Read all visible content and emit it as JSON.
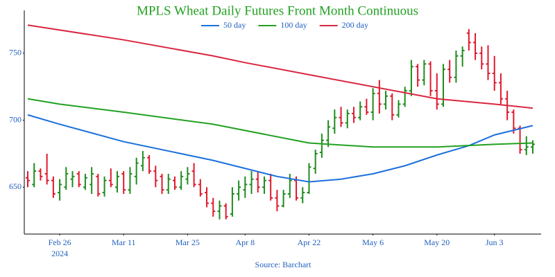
{
  "chart_data": {
    "type": "ohlc",
    "title": "MPLS Wheat Daily Futures Front Month Continuous",
    "source": "Source: Barchart",
    "x_year": "2024",
    "x": [
      "2024-02-16",
      "2024-02-20",
      "2024-02-21",
      "2024-02-22",
      "2024-02-23",
      "2024-02-26",
      "2024-02-27",
      "2024-02-28",
      "2024-02-29",
      "2024-03-01",
      "2024-03-04",
      "2024-03-05",
      "2024-03-06",
      "2024-03-07",
      "2024-03-08",
      "2024-03-11",
      "2024-03-12",
      "2024-03-13",
      "2024-03-14",
      "2024-03-15",
      "2024-03-18",
      "2024-03-19",
      "2024-03-20",
      "2024-03-21",
      "2024-03-22",
      "2024-03-25",
      "2024-03-26",
      "2024-03-27",
      "2024-03-28",
      "2024-04-01",
      "2024-04-02",
      "2024-04-03",
      "2024-04-04",
      "2024-04-05",
      "2024-04-08",
      "2024-04-09",
      "2024-04-10",
      "2024-04-11",
      "2024-04-12",
      "2024-04-15",
      "2024-04-16",
      "2024-04-17",
      "2024-04-18",
      "2024-04-19",
      "2024-04-22",
      "2024-04-23",
      "2024-04-24",
      "2024-04-25",
      "2024-04-26",
      "2024-04-29",
      "2024-04-30",
      "2024-05-01",
      "2024-05-02",
      "2024-05-03",
      "2024-05-06",
      "2024-05-07",
      "2024-05-08",
      "2024-05-09",
      "2024-05-10",
      "2024-05-13",
      "2024-05-14",
      "2024-05-15",
      "2024-05-16",
      "2024-05-17",
      "2024-05-20",
      "2024-05-21",
      "2024-05-22",
      "2024-05-23",
      "2024-05-24",
      "2024-05-28",
      "2024-05-29",
      "2024-05-30",
      "2024-05-31",
      "2024-06-03",
      "2024-06-04",
      "2024-06-05",
      "2024-06-06",
      "2024-06-07",
      "2024-06-10",
      "2024-06-11"
    ],
    "open": [
      657,
      652,
      662,
      660,
      655,
      646,
      650,
      656,
      660,
      650,
      652,
      658,
      646,
      655,
      650,
      660,
      648,
      658,
      666,
      672,
      662,
      658,
      648,
      655,
      650,
      656,
      662,
      652,
      646,
      638,
      632,
      636,
      630,
      645,
      648,
      652,
      656,
      650,
      655,
      642,
      636,
      645,
      655,
      642,
      646,
      664,
      676,
      685,
      694,
      702,
      698,
      705,
      702,
      710,
      706,
      720,
      712,
      718,
      704,
      712,
      722,
      740,
      730,
      742,
      722,
      712,
      738,
      732,
      748,
      765,
      758,
      750,
      742,
      735,
      728,
      716,
      706,
      694,
      678,
      680
    ],
    "high": [
      662,
      668,
      664,
      675,
      658,
      656,
      665,
      662,
      662,
      660,
      665,
      660,
      658,
      664,
      662,
      662,
      665,
      672,
      677,
      674,
      666,
      660,
      660,
      658,
      662,
      665,
      668,
      656,
      650,
      642,
      640,
      638,
      650,
      655,
      658,
      662,
      662,
      658,
      660,
      648,
      648,
      660,
      658,
      650,
      668,
      678,
      690,
      700,
      708,
      710,
      708,
      710,
      714,
      716,
      724,
      730,
      722,
      720,
      715,
      725,
      745,
      742,
      745,
      744,
      735,
      742,
      745,
      752,
      755,
      768,
      765,
      755,
      756,
      748,
      735,
      722,
      708,
      696,
      688,
      685
    ],
    "low": [
      650,
      650,
      655,
      652,
      642,
      640,
      648,
      650,
      650,
      648,
      645,
      643,
      643,
      650,
      646,
      645,
      645,
      652,
      662,
      660,
      650,
      645,
      645,
      648,
      648,
      652,
      650,
      643,
      635,
      628,
      626,
      626,
      628,
      640,
      642,
      645,
      646,
      645,
      640,
      632,
      635,
      642,
      640,
      638,
      645,
      660,
      672,
      680,
      690,
      695,
      694,
      698,
      700,
      704,
      700,
      705,
      708,
      700,
      702,
      710,
      718,
      725,
      726,
      718,
      708,
      710,
      728,
      728,
      740,
      752,
      745,
      738,
      730,
      722,
      712,
      700,
      690,
      675,
      674,
      675
    ],
    "close": [
      655,
      662,
      658,
      655,
      645,
      652,
      660,
      658,
      652,
      657,
      660,
      645,
      655,
      652,
      658,
      648,
      660,
      668,
      672,
      662,
      655,
      648,
      656,
      650,
      658,
      660,
      652,
      645,
      638,
      632,
      636,
      628,
      645,
      650,
      652,
      656,
      650,
      655,
      642,
      636,
      645,
      655,
      642,
      646,
      665,
      675,
      685,
      695,
      702,
      698,
      705,
      702,
      710,
      706,
      720,
      712,
      718,
      704,
      712,
      722,
      740,
      730,
      742,
      722,
      712,
      738,
      732,
      748,
      752,
      758,
      750,
      742,
      735,
      728,
      716,
      706,
      694,
      678,
      680,
      682
    ],
    "up_color": "#1e8c1e",
    "down_color": "#e0182d",
    "series": [
      {
        "name": "50 day",
        "color": "#1a6fdc",
        "x": [
          "2024-02-16",
          "2024-02-26",
          "2024-03-11",
          "2024-04-01",
          "2024-04-15",
          "2024-04-22",
          "2024-04-29",
          "2024-05-06",
          "2024-05-13",
          "2024-05-20",
          "2024-05-28",
          "2024-06-03",
          "2024-06-11"
        ],
        "values": [
          704,
          697,
          684,
          670,
          658,
          654,
          656,
          660,
          666,
          674,
          681,
          689,
          696
        ]
      },
      {
        "name": "100 day",
        "color": "#21a021",
        "x": [
          "2024-02-16",
          "2024-02-26",
          "2024-03-11",
          "2024-04-01",
          "2024-04-22",
          "2024-05-06",
          "2024-05-20",
          "2024-06-03",
          "2024-06-11"
        ],
        "values": [
          716,
          712,
          706,
          697,
          683,
          680,
          680,
          682,
          683
        ]
      },
      {
        "name": "200 day",
        "color": "#d9263f",
        "x": [
          "2024-02-16",
          "2024-03-11",
          "2024-04-01",
          "2024-04-08",
          "2024-04-22",
          "2024-05-06",
          "2024-05-20",
          "2024-06-03",
          "2024-06-11"
        ],
        "values": [
          771,
          760,
          748,
          743,
          734,
          725,
          716,
          712,
          709
        ]
      }
    ],
    "ylim": [
      615,
      782
    ],
    "yticks": [
      650,
      700,
      750
    ],
    "xticks": [
      {
        "value": "2024-02-26",
        "label": "Feb 26"
      },
      {
        "value": "2024-03-11",
        "label": "Mar 11"
      },
      {
        "value": "2024-03-25",
        "label": "Mar 25"
      },
      {
        "value": "2024-04-08",
        "label": "Apr 8"
      },
      {
        "value": "2024-04-22",
        "label": "Apr 22"
      },
      {
        "value": "2024-05-06",
        "label": "May 6"
      },
      {
        "value": "2024-05-20",
        "label": "May 20"
      },
      {
        "value": "2024-06-03",
        "label": "Jun 3"
      }
    ],
    "grid": false
  }
}
